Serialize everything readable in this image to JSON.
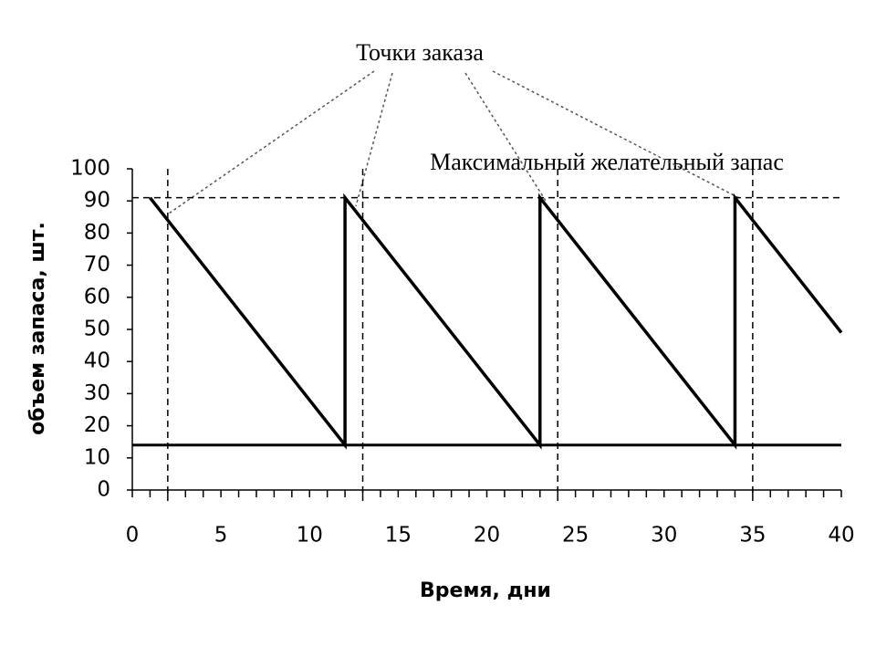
{
  "chart_data": {
    "type": "line",
    "annotation": "Точки заказа",
    "reference_label": "Максимальный желательный запас",
    "xlabel": "Время, дни",
    "ylabel": "объем запаса, шт.",
    "x": [
      1,
      12,
      12,
      23,
      23,
      34,
      34,
      40
    ],
    "series": [
      {
        "color": "#000000",
        "values": [
          91,
          14,
          91,
          14,
          91,
          14,
          91,
          49
        ]
      }
    ],
    "reorder_level": 14,
    "max_stock": 91,
    "review_days": [
      2,
      13,
      24,
      35
    ],
    "xlim": [
      0,
      40
    ],
    "xticks": [
      0,
      5,
      10,
      15,
      20,
      25,
      30,
      35,
      40
    ],
    "xminorticks": [
      0,
      1,
      2,
      3,
      4,
      5,
      6,
      7,
      8,
      9,
      10,
      11,
      12,
      13,
      14,
      15,
      16,
      17,
      18,
      19,
      20,
      21,
      22,
      23,
      24,
      25,
      26,
      27,
      28,
      29,
      30,
      31,
      32,
      33,
      34,
      35,
      36,
      37,
      38,
      39,
      40
    ],
    "ylim": [
      0,
      100
    ],
    "yticks": [
      0,
      10,
      20,
      30,
      40,
      50,
      60,
      70,
      80,
      90,
      100
    ]
  }
}
